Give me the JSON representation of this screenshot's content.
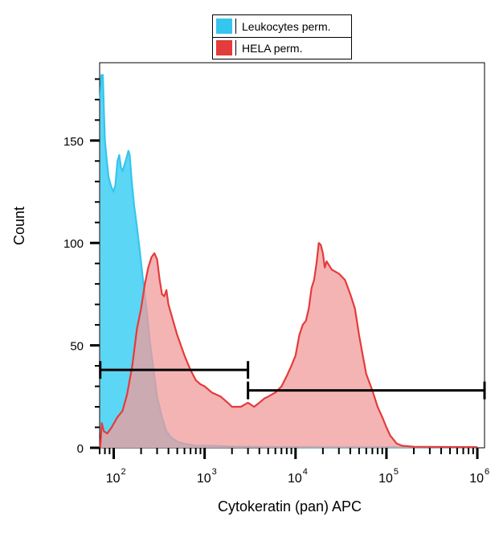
{
  "chart_data": {
    "type": "area",
    "xlabel": "Cytokeratin (pan) APC",
    "ylabel": "Count",
    "xscale": "log",
    "xlim": [
      70,
      1200000
    ],
    "ylim": [
      0,
      188
    ],
    "yticks": [
      0,
      50,
      100,
      150
    ],
    "ytick_labels": [
      "0",
      "50",
      "100",
      "150"
    ],
    "xticks": [
      100,
      1000,
      10000,
      100000,
      1000000
    ],
    "xtick_labels": [
      {
        "base": "10",
        "exp": "2"
      },
      {
        "base": "10",
        "exp": "3"
      },
      {
        "base": "10",
        "exp": "4"
      },
      {
        "base": "10",
        "exp": "5"
      },
      {
        "base": "10",
        "exp": "6"
      }
    ],
    "legend_position": "top-center",
    "series": [
      {
        "name": "Leukocytes perm.",
        "color": "#35c6ee",
        "fill": "#5bd6f5",
        "points": [
          [
            71,
            170
          ],
          [
            73,
            182
          ],
          [
            76,
            182
          ],
          [
            78,
            165
          ],
          [
            80,
            150
          ],
          [
            84,
            140
          ],
          [
            88,
            132
          ],
          [
            93,
            128
          ],
          [
            99,
            125
          ],
          [
            104,
            128
          ],
          [
            110,
            140
          ],
          [
            115,
            143
          ],
          [
            120,
            137
          ],
          [
            125,
            135
          ],
          [
            135,
            140
          ],
          [
            145,
            145
          ],
          [
            150,
            143
          ],
          [
            158,
            130
          ],
          [
            168,
            118
          ],
          [
            180,
            108
          ],
          [
            195,
            95
          ],
          [
            210,
            82
          ],
          [
            230,
            68
          ],
          [
            250,
            52
          ],
          [
            275,
            38
          ],
          [
            300,
            25
          ],
          [
            340,
            15
          ],
          [
            380,
            8
          ],
          [
            430,
            5
          ],
          [
            500,
            3
          ],
          [
            600,
            2
          ],
          [
            800,
            1
          ],
          [
            1200,
            1
          ],
          [
            2000,
            0.6
          ],
          [
            5000,
            0.4
          ],
          [
            20000,
            0.3
          ],
          [
            100000,
            0.3
          ],
          [
            500000,
            0.3
          ],
          [
            1000000,
            0.3
          ]
        ]
      },
      {
        "name": "HELA perm.",
        "color": "#e43b3b",
        "fill": "#f29b9b",
        "points": [
          [
            71,
            0
          ],
          [
            74,
            12
          ],
          [
            78,
            8
          ],
          [
            85,
            7
          ],
          [
            95,
            10
          ],
          [
            110,
            15
          ],
          [
            125,
            18
          ],
          [
            140,
            26
          ],
          [
            160,
            40
          ],
          [
            180,
            58
          ],
          [
            200,
            68
          ],
          [
            220,
            80
          ],
          [
            240,
            88
          ],
          [
            260,
            93
          ],
          [
            280,
            95
          ],
          [
            300,
            92
          ],
          [
            320,
            82
          ],
          [
            340,
            75
          ],
          [
            360,
            74
          ],
          [
            380,
            77
          ],
          [
            400,
            70
          ],
          [
            450,
            62
          ],
          [
            500,
            55
          ],
          [
            600,
            45
          ],
          [
            700,
            38
          ],
          [
            800,
            33
          ],
          [
            900,
            31
          ],
          [
            1000,
            30
          ],
          [
            1200,
            27
          ],
          [
            1500,
            25
          ],
          [
            1800,
            22
          ],
          [
            2000,
            20
          ],
          [
            2500,
            20
          ],
          [
            3000,
            22
          ],
          [
            3500,
            20
          ],
          [
            4000,
            22
          ],
          [
            4500,
            24
          ],
          [
            5000,
            25
          ],
          [
            6000,
            27
          ],
          [
            7000,
            30
          ],
          [
            8000,
            35
          ],
          [
            9000,
            40
          ],
          [
            10000,
            45
          ],
          [
            11000,
            55
          ],
          [
            12000,
            60
          ],
          [
            13000,
            62
          ],
          [
            14000,
            68
          ],
          [
            15000,
            78
          ],
          [
            16000,
            82
          ],
          [
            17000,
            90
          ],
          [
            18000,
            100
          ],
          [
            19000,
            99
          ],
          [
            20000,
            95
          ],
          [
            21000,
            88
          ],
          [
            22000,
            91
          ],
          [
            25000,
            87
          ],
          [
            30000,
            85
          ],
          [
            35000,
            82
          ],
          [
            40000,
            75
          ],
          [
            45000,
            68
          ],
          [
            50000,
            55
          ],
          [
            55000,
            45
          ],
          [
            60000,
            36
          ],
          [
            70000,
            28
          ],
          [
            80000,
            20
          ],
          [
            90000,
            15
          ],
          [
            100000,
            10
          ],
          [
            110000,
            6
          ],
          [
            130000,
            2
          ],
          [
            150000,
            1
          ],
          [
            200000,
            0.5
          ],
          [
            1000000,
            0.3
          ]
        ]
      }
    ],
    "gates": [
      {
        "x_start": 71,
        "x_end": 3000,
        "y": 38
      },
      {
        "x_start": 3000,
        "x_end": 1200000,
        "y": 28
      }
    ]
  }
}
